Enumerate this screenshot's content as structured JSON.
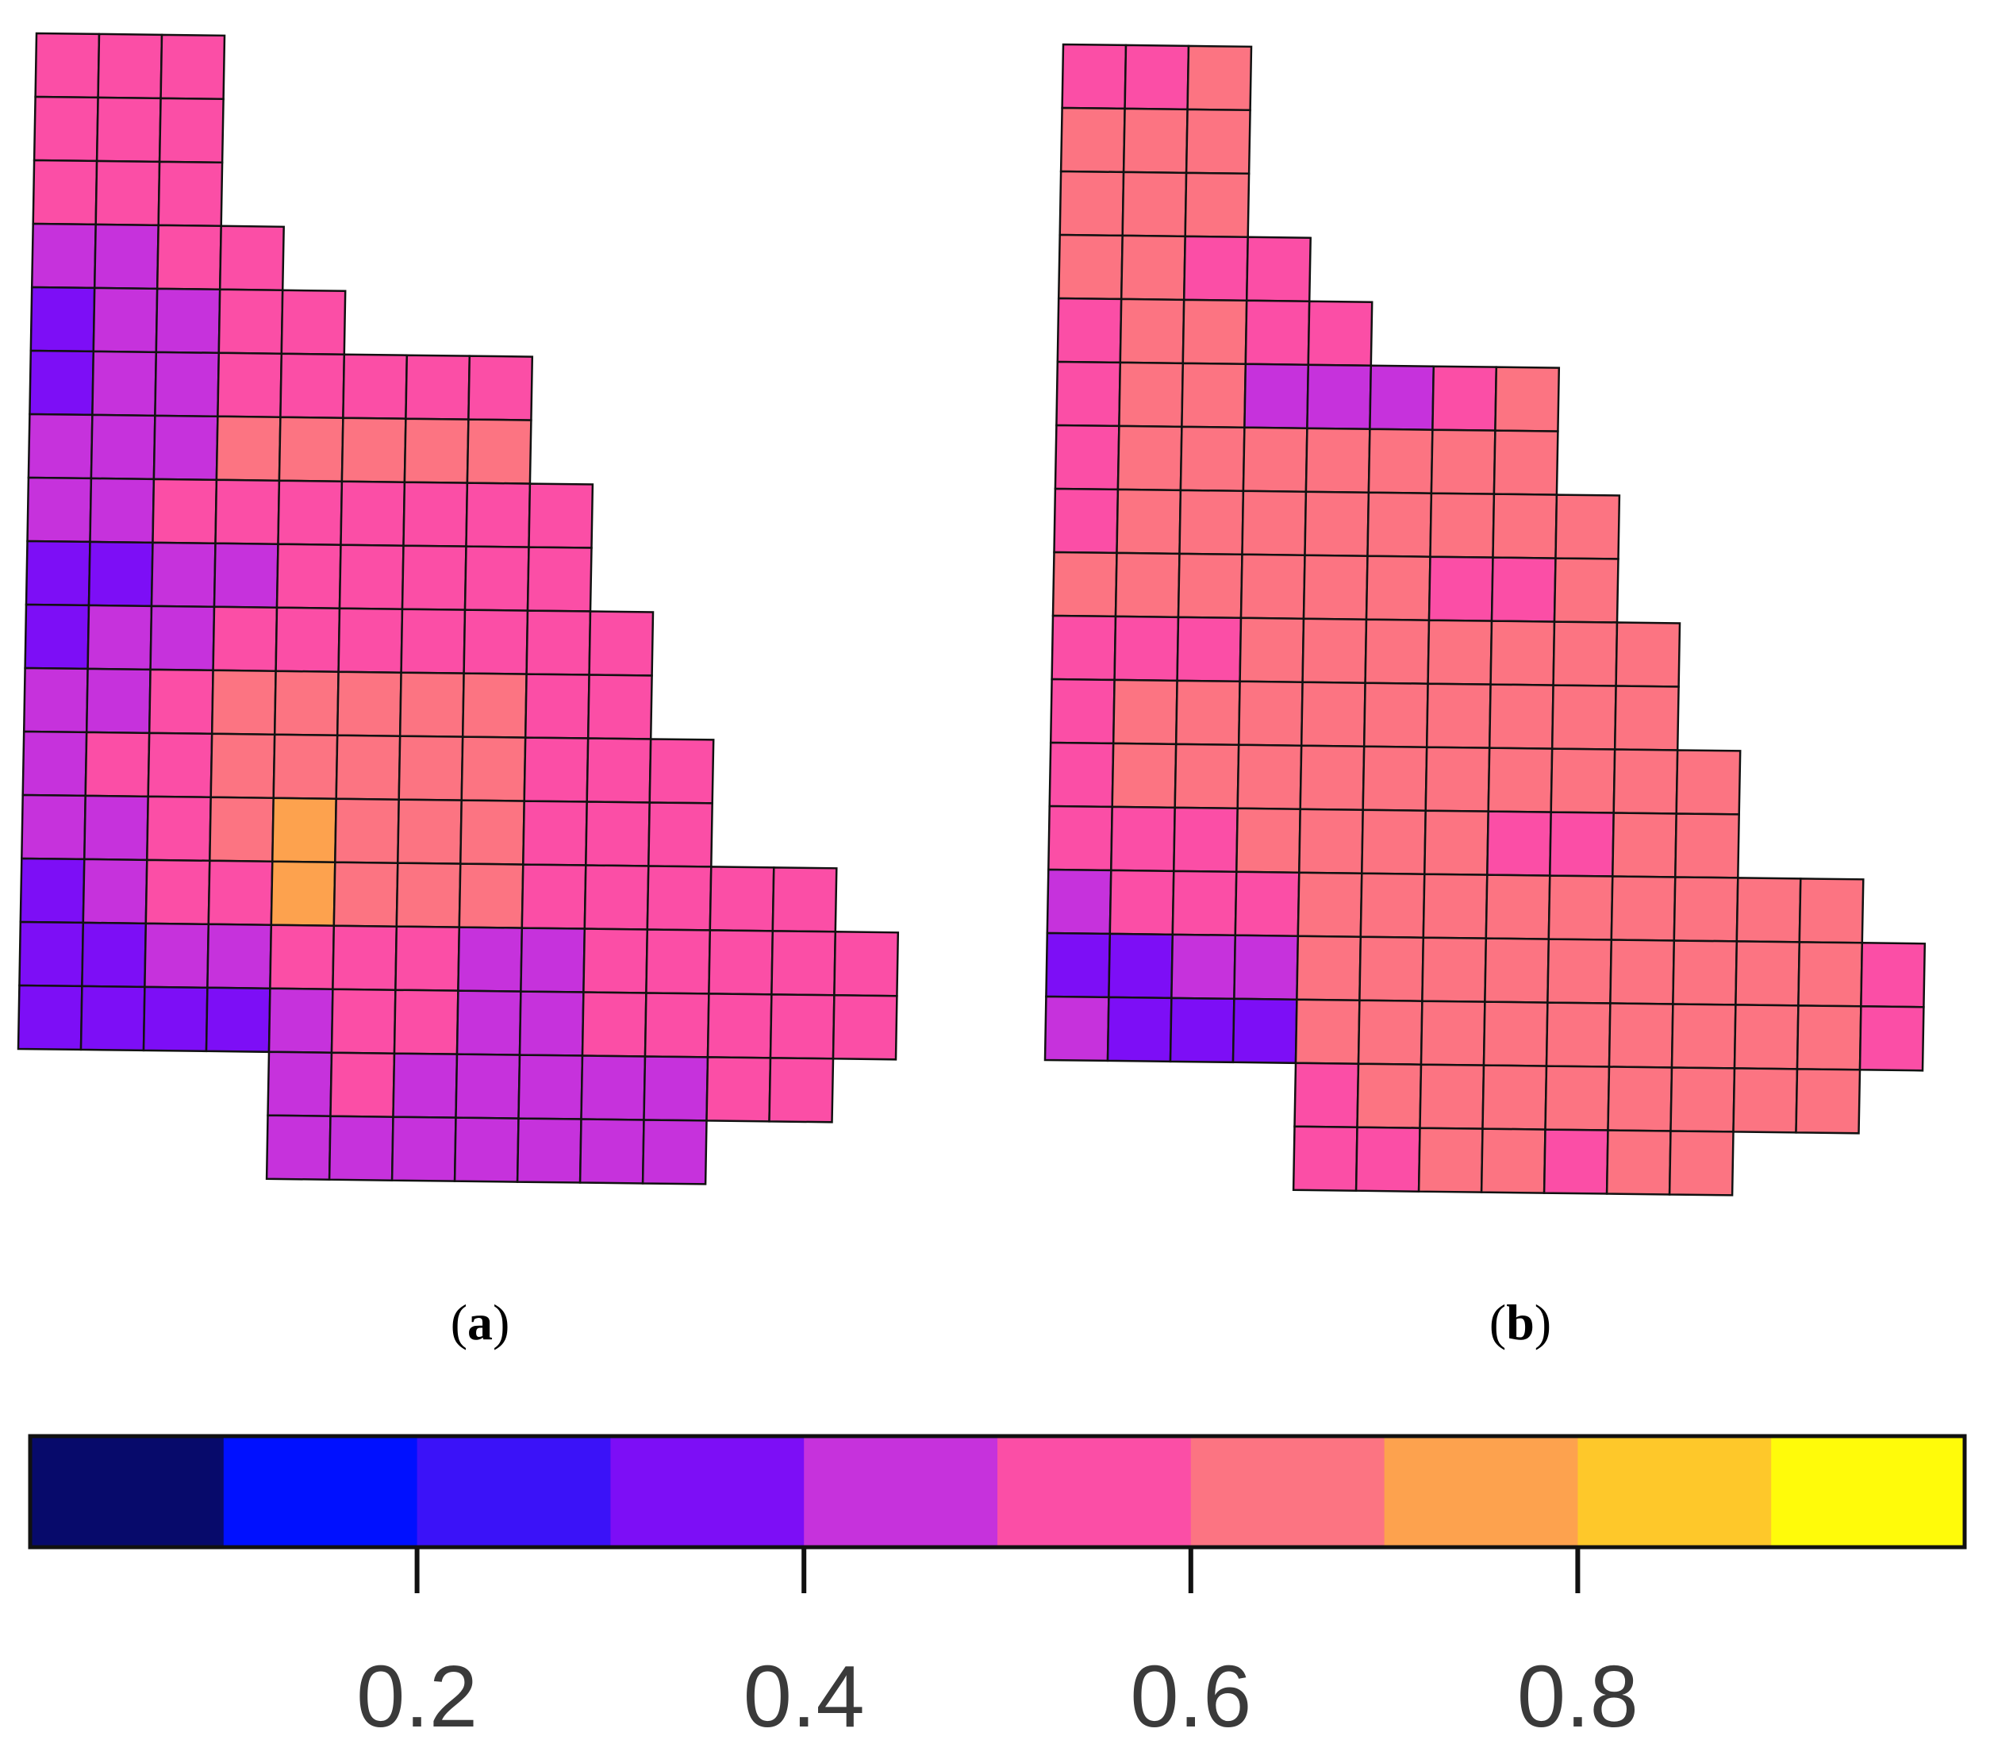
{
  "panels": [
    {
      "label": "b",
      "grid": [
        [
          null,
          null,
          null,
          null,
          null,
          null,
          null,
          null,
          null,
          null,
          null,
          null,
          null,
          null,
          null
        ],
        [
          null,
          null,
          null,
          null,
          null,
          null,
          null,
          null,
          null,
          null,
          null,
          null,
          null,
          null,
          null
        ],
        [
          null,
          null,
          null,
          null,
          null,
          null,
          null,
          null,
          null,
          null,
          null,
          null,
          null,
          null,
          null
        ],
        [
          null,
          null,
          null,
          null,
          null,
          null,
          null,
          null,
          null,
          null,
          null,
          null,
          null,
          null,
          null
        ],
        [
          null,
          null,
          null,
          null,
          null,
          null,
          null,
          null,
          null,
          null,
          null,
          null,
          null,
          null,
          null
        ],
        [
          null,
          null,
          null,
          null,
          null,
          null,
          null,
          null,
          null,
          null,
          null,
          null,
          null,
          null,
          null
        ],
        [
          null,
          null,
          null,
          null,
          null,
          null,
          null,
          null,
          null,
          null,
          null,
          null,
          null,
          null,
          null
        ],
        [
          null,
          null,
          null,
          null,
          null,
          null,
          null,
          null,
          null,
          null,
          null,
          null,
          null,
          null,
          null
        ],
        [
          null,
          null,
          null,
          null,
          null,
          null,
          null,
          null,
          null,
          null,
          null,
          null,
          null,
          null,
          null
        ],
        [
          null,
          null,
          null,
          null,
          null,
          null,
          null,
          null,
          null,
          null,
          null,
          null,
          null,
          null,
          null
        ],
        [
          null,
          null,
          null,
          null,
          null,
          null,
          null,
          null,
          null,
          null,
          null,
          null,
          null,
          null,
          null
        ],
        [
          null,
          null,
          null,
          null,
          null,
          null,
          null,
          null,
          null,
          null,
          null,
          null,
          null,
          null,
          null
        ],
        [
          null,
          null,
          null,
          null,
          null,
          null,
          null,
          null,
          null,
          null,
          null,
          null,
          null,
          null,
          null
        ],
        [
          null,
          null,
          null,
          null,
          null,
          null,
          null,
          null,
          null,
          null,
          null,
          null,
          null,
          null,
          null
        ],
        [
          null,
          null,
          null,
          null,
          null,
          null,
          null,
          null,
          null,
          null,
          null,
          null,
          null,
          null,
          null
        ],
        [
          null,
          null,
          null,
          null,
          null,
          null,
          null,
          null,
          null,
          null,
          null,
          null,
          null,
          null,
          null
        ],
        [
          null,
          null,
          null,
          null,
          null,
          null,
          null,
          null,
          null,
          null,
          null,
          null,
          null,
          null,
          null
        ],
        [
          null,
          null,
          null,
          null,
          null,
          null,
          null,
          null,
          null,
          null,
          null,
          null,
          null,
          null,
          null
        ]
      ]
    },
    {
      "label": "a",
      "grid": [
        [
          0.55,
          0.55,
          0.55,
          null,
          null,
          null,
          null,
          null,
          null,
          null,
          null,
          null,
          null,
          null,
          null
        ],
        [
          0.55,
          0.55,
          0.55,
          null,
          null,
          null,
          null,
          null,
          null,
          null,
          null,
          null,
          null,
          null,
          null
        ],
        [
          0.55,
          0.55,
          0.55,
          null,
          null,
          null,
          null,
          null,
          null,
          null,
          null,
          null,
          null,
          null,
          null
        ],
        [
          0.45,
          0.45,
          0.55,
          0.55,
          null,
          null,
          null,
          null,
          null,
          null,
          null,
          null,
          null,
          null,
          null
        ],
        [
          0.3,
          0.45,
          0.45,
          0.55,
          0.55,
          null,
          null,
          null,
          null,
          null,
          null,
          null,
          null,
          null,
          null
        ],
        [
          0.3,
          0.45,
          0.45,
          0.55,
          0.55,
          0.55,
          0.55,
          0.55,
          null,
          null,
          null,
          null,
          null,
          null,
          null
        ],
        [
          0.45,
          0.45,
          0.45,
          0.65,
          0.65,
          0.65,
          0.65,
          0.65,
          null,
          null,
          null,
          null,
          null,
          null,
          null
        ],
        [
          0.45,
          0.45,
          0.55,
          0.55,
          0.55,
          0.55,
          0.55,
          0.55,
          0.55,
          null,
          null,
          null,
          null,
          null,
          null
        ],
        [
          0.35,
          0.35,
          0.45,
          0.45,
          0.55,
          0.55,
          0.55,
          0.55,
          0.55,
          null,
          null,
          null,
          null,
          null,
          null
        ],
        [
          0.35,
          0.45,
          0.45,
          0.55,
          0.55,
          0.55,
          0.55,
          0.55,
          0.55,
          0.55,
          null,
          null,
          null,
          null,
          null
        ],
        [
          0.45,
          0.45,
          0.55,
          0.65,
          0.65,
          0.65,
          0.65,
          0.65,
          0.55,
          0.55,
          null,
          null,
          null,
          null,
          null
        ],
        [
          0.45,
          0.55,
          0.55,
          0.65,
          0.65,
          0.65,
          0.65,
          0.65,
          0.55,
          0.55,
          0.55,
          null,
          null,
          null,
          null
        ],
        [
          0.45,
          0.45,
          0.55,
          0.65,
          0.75,
          0.65,
          0.65,
          0.65,
          0.55,
          0.55,
          0.55,
          null,
          null,
          null,
          null
        ],
        [
          0.35,
          0.45,
          0.55,
          0.55,
          0.75,
          0.65,
          0.65,
          0.65,
          0.55,
          0.55,
          0.55,
          0.55,
          0.55,
          null,
          null
        ],
        [
          0.35,
          0.35,
          0.45,
          0.45,
          0.55,
          0.55,
          0.55,
          0.45,
          0.45,
          0.55,
          0.55,
          0.55,
          0.55,
          0.55,
          null
        ],
        [
          0.35,
          0.35,
          0.35,
          0.35,
          0.45,
          0.55,
          0.55,
          0.45,
          0.45,
          0.55,
          0.55,
          0.55,
          0.55,
          0.55,
          null
        ],
        [
          null,
          null,
          null,
          null,
          0.45,
          0.55,
          0.45,
          0.45,
          0.45,
          0.45,
          0.45,
          0.55,
          0.55,
          null,
          null
        ],
        [
          null,
          null,
          null,
          null,
          0.45,
          0.45,
          0.45,
          0.45,
          0.45,
          0.45,
          0.45,
          null,
          null,
          null,
          null
        ]
      ]
    }
  ],
  "colorbar": {
    "range": [
      0,
      1
    ],
    "bins": [
      "#070a6b",
      "#0010ff",
      "#3b12f8",
      "#7d0ef6",
      "#c632dc",
      "#fb4ea6",
      "#fc7482",
      "#fda24e",
      "#fec82a",
      "#fffb0a"
    ],
    "ticks": [
      "0.2",
      "0.4",
      "0.6",
      "0.8"
    ],
    "tick_values": [
      0.2,
      0.4,
      0.6,
      0.8
    ]
  }
}
